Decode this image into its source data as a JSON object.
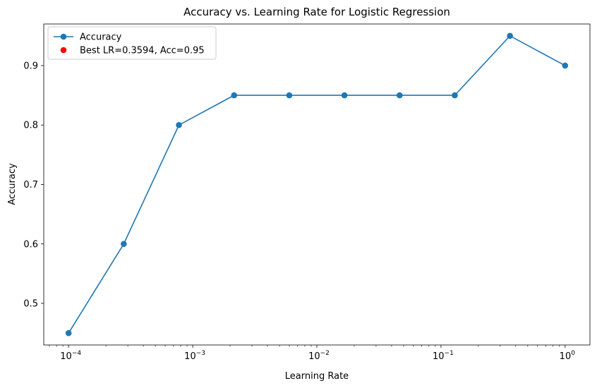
{
  "chart_data": {
    "type": "line",
    "title": "Accuracy vs. Learning Rate for Logistic Regression",
    "xlabel": "Learning Rate",
    "ylabel": "Accuracy",
    "xscale": "log",
    "x_ticks": [
      {
        "value": 0.0001,
        "base": "10",
        "exp": "−4"
      },
      {
        "value": 0.001,
        "base": "10",
        "exp": "−3"
      },
      {
        "value": 0.01,
        "base": "10",
        "exp": "−2"
      },
      {
        "value": 0.1,
        "base": "10",
        "exp": "−1"
      },
      {
        "value": 1,
        "base": "10",
        "exp": "0"
      }
    ],
    "y_ticks": [
      "0.5",
      "0.6",
      "0.7",
      "0.8",
      "0.9"
    ],
    "ylim": [
      0.43,
      0.97
    ],
    "series": [
      {
        "name": "Accuracy",
        "color": "#1f77b4",
        "x": [
          0.0001,
          0.0002783,
          0.0007743,
          0.0021544,
          0.0059948,
          0.016681,
          0.046416,
          0.12915,
          0.3594,
          1.0
        ],
        "y": [
          0.45,
          0.6,
          0.8,
          0.85,
          0.85,
          0.85,
          0.85,
          0.85,
          0.95,
          0.9
        ]
      }
    ],
    "best_point": {
      "label": "Best LR=0.3594, Acc=0.95",
      "x": 0.3594,
      "y": 0.95,
      "color": "#ff0000"
    },
    "legend": {
      "placement": "top-left",
      "entries": [
        "Accuracy",
        "Best LR=0.3594, Acc=0.95"
      ]
    },
    "grid": false
  }
}
